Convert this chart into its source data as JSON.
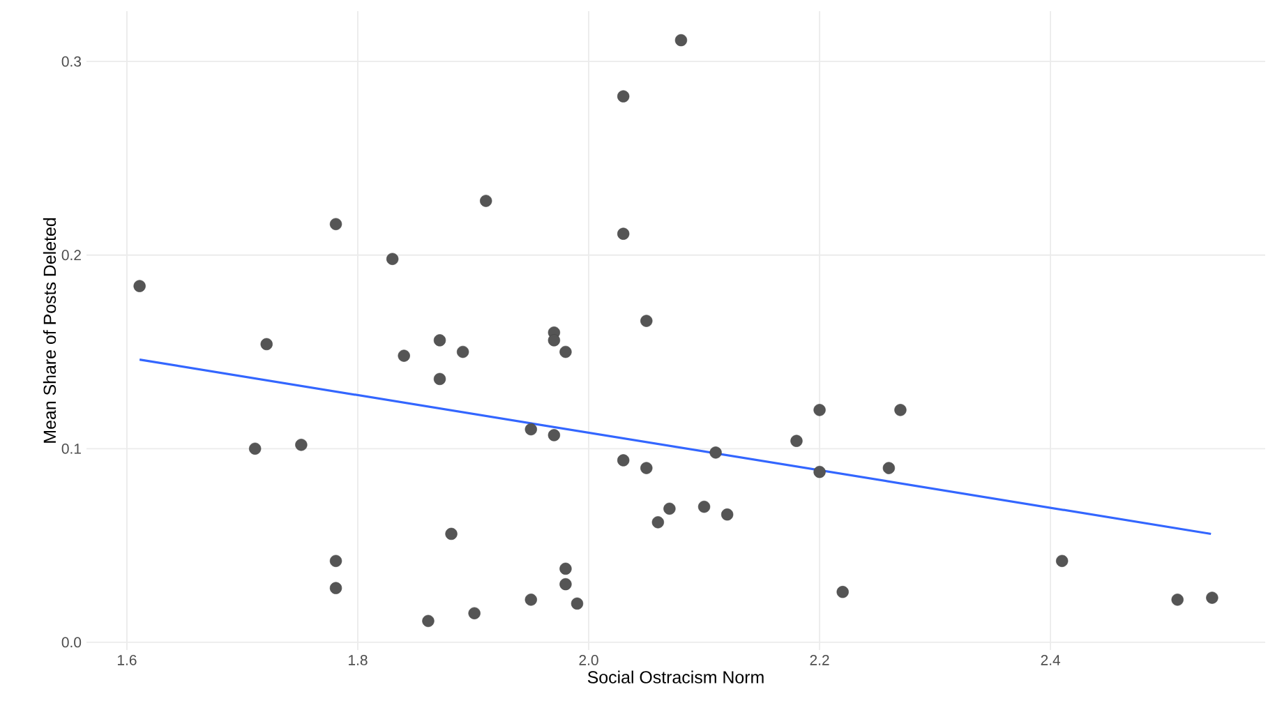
{
  "chart_data": {
    "type": "scatter",
    "xlabel": "Social Ostracism Norm",
    "ylabel": "Mean Share of Posts Deleted",
    "xlim": [
      1.565,
      2.586
    ],
    "ylim": [
      -0.004,
      0.326
    ],
    "xticks": [
      1.6,
      1.8,
      {
        "value": 2,
        "label": "2.0"
      },
      2.2,
      2.4
    ],
    "yticks": [
      {
        "value": 0,
        "label": "0.0"
      },
      0.1,
      0.2,
      0.3
    ],
    "grid": true,
    "marker": "circle",
    "series": [
      {
        "color": "#555555",
        "x": [
          1.611,
          1.781,
          1.721,
          1.711,
          1.751,
          1.781,
          1.781,
          1.83,
          1.84,
          1.871,
          1.871,
          1.891,
          1.911,
          1.881,
          1.861,
          1.901,
          1.95,
          1.97,
          1.97,
          1.97,
          1.98,
          1.95,
          1.98,
          1.98,
          1.99,
          2.03,
          2.03,
          2.05,
          2.03,
          2.05,
          2.08,
          2.07,
          2.06,
          2.1,
          2.12,
          2.11,
          2.18,
          2.2,
          2.2,
          2.27,
          2.26,
          2.22,
          2.41,
          2.51,
          2.54
        ],
        "values": [
          0.184,
          0.216,
          0.154,
          0.1,
          0.102,
          0.042,
          0.028,
          0.198,
          0.148,
          0.156,
          0.136,
          0.15,
          0.228,
          0.056,
          0.011,
          0.015,
          0.11,
          0.107,
          0.16,
          0.156,
          0.15,
          0.022,
          0.038,
          0.03,
          0.02,
          0.282,
          0.211,
          0.166,
          0.094,
          0.09,
          0.311,
          0.069,
          0.062,
          0.07,
          0.066,
          0.098,
          0.104,
          0.12,
          0.088,
          0.12,
          0.09,
          0.026,
          0.042,
          0.022,
          0.023
        ]
      },
      {
        "type": "line",
        "color": "#3366ff",
        "marker": "none",
        "x": [
          1.611,
          2.539
        ],
        "values": [
          0.146,
          0.056
        ]
      }
    ]
  }
}
